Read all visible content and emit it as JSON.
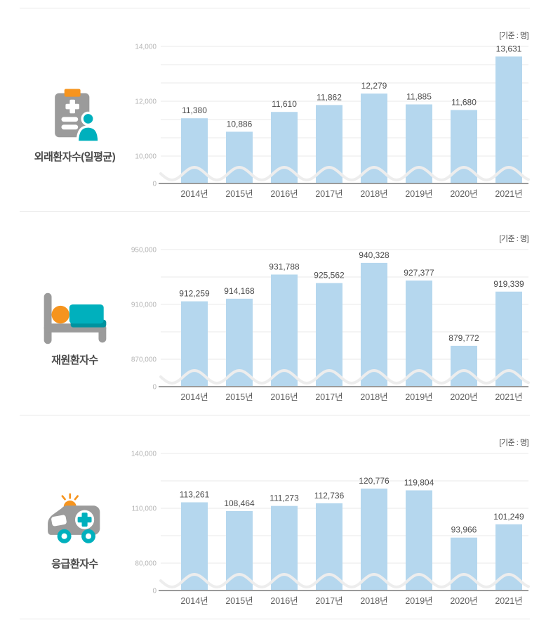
{
  "colors": {
    "divider": "#e8e8e8",
    "bar_fill": "#b5d7ee",
    "grid": "#e9e9e9",
    "axis_line": "#9a9a9a",
    "wave": "#ededed",
    "tick_text": "#b3b3b3",
    "year_text": "#5f5f5f",
    "value_text": "#4c4c4c",
    "icon_gray": "#9b9b9b",
    "icon_orange": "#f6941e",
    "icon_teal": "#00b0bd",
    "icon_teal_dark": "#00929e",
    "icon_white": "#ffffff"
  },
  "chart_data": [
    {
      "type": "bar",
      "title": "외래환자수(일평균)",
      "unit_caption": "[기준 : 명]",
      "icon": "clipboard-patient-icon",
      "categories": [
        "2014년",
        "2015년",
        "2016년",
        "2017년",
        "2018년",
        "2019년",
        "2020년",
        "2021년"
      ],
      "values": [
        11380,
        10886,
        11610,
        11862,
        12279,
        11885,
        11680,
        13631
      ],
      "xlabel": "",
      "ylabel": "",
      "y_ticks": [
        0,
        10000,
        12000,
        14000
      ],
      "ylim": [
        0,
        14000
      ],
      "broken_axis_range": [
        10000,
        14000
      ],
      "grid_divisions": 3,
      "axis_break": true,
      "legend": "none",
      "grid": "on"
    },
    {
      "type": "bar",
      "title": "재원환자수",
      "unit_caption": "[기준 : 명]",
      "icon": "hospital-bed-icon",
      "categories": [
        "2014년",
        "2015년",
        "2016년",
        "2017년",
        "2018년",
        "2019년",
        "2020년",
        "2021년"
      ],
      "values": [
        912259,
        914168,
        931788,
        925562,
        940328,
        927377,
        879772,
        919339
      ],
      "xlabel": "",
      "ylabel": "",
      "y_ticks": [
        0,
        870000,
        910000,
        950000
      ],
      "ylim": [
        0,
        950000
      ],
      "broken_axis_range": [
        870000,
        950000
      ],
      "grid_divisions": 2,
      "axis_break": true,
      "legend": "none",
      "grid": "on"
    },
    {
      "type": "bar",
      "title": "응급환자수",
      "unit_caption": "[기준 : 명]",
      "icon": "ambulance-icon",
      "categories": [
        "2014년",
        "2015년",
        "2016년",
        "2017년",
        "2018년",
        "2019년",
        "2020년",
        "2021년"
      ],
      "values": [
        113261,
        108464,
        111273,
        112736,
        120776,
        119804,
        93966,
        101249
      ],
      "xlabel": "",
      "ylabel": "",
      "y_ticks": [
        0,
        80000,
        110000,
        140000
      ],
      "ylim": [
        0,
        140000
      ],
      "broken_axis_range": [
        80000,
        140000
      ],
      "grid_divisions": 2,
      "axis_break": true,
      "legend": "none",
      "grid": "on"
    }
  ]
}
